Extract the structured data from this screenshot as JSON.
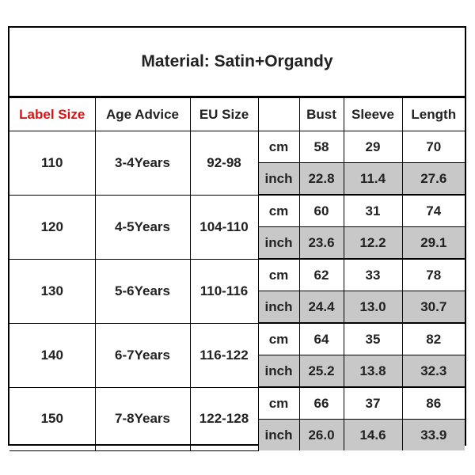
{
  "title": "Material: Satin+Organdy",
  "headers": {
    "label_size": "Label Size",
    "age_advice": "Age Advice",
    "eu_size": "EU Size",
    "unit": "",
    "bust": "Bust",
    "sleeve": "Sleeve",
    "length": "Length"
  },
  "colors": {
    "label_size_header": "#e01010",
    "inch_row_bg": "#c8c8c8",
    "border": "#000000"
  },
  "units": {
    "cm": "cm",
    "inch": "inch"
  },
  "rows": [
    {
      "label": "110",
      "age": "3-4Years",
      "eu": "92-98",
      "cm": {
        "bust": "58",
        "sleeve": "29",
        "length": "70"
      },
      "inch": {
        "bust": "22.8",
        "sleeve": "11.4",
        "length": "27.6"
      }
    },
    {
      "label": "120",
      "age": "4-5Years",
      "eu": "104-110",
      "cm": {
        "bust": "60",
        "sleeve": "31",
        "length": "74"
      },
      "inch": {
        "bust": "23.6",
        "sleeve": "12.2",
        "length": "29.1"
      }
    },
    {
      "label": "130",
      "age": "5-6Years",
      "eu": "110-116",
      "cm": {
        "bust": "62",
        "sleeve": "33",
        "length": "78"
      },
      "inch": {
        "bust": "24.4",
        "sleeve": "13.0",
        "length": "30.7"
      }
    },
    {
      "label": "140",
      "age": "6-7Years",
      "eu": "116-122",
      "cm": {
        "bust": "64",
        "sleeve": "35",
        "length": "82"
      },
      "inch": {
        "bust": "25.2",
        "sleeve": "13.8",
        "length": "32.3"
      }
    },
    {
      "label": "150",
      "age": "7-8Years",
      "eu": "122-128",
      "cm": {
        "bust": "66",
        "sleeve": "37",
        "length": "86"
      },
      "inch": {
        "bust": "26.0",
        "sleeve": "14.6",
        "length": "33.9"
      }
    }
  ]
}
